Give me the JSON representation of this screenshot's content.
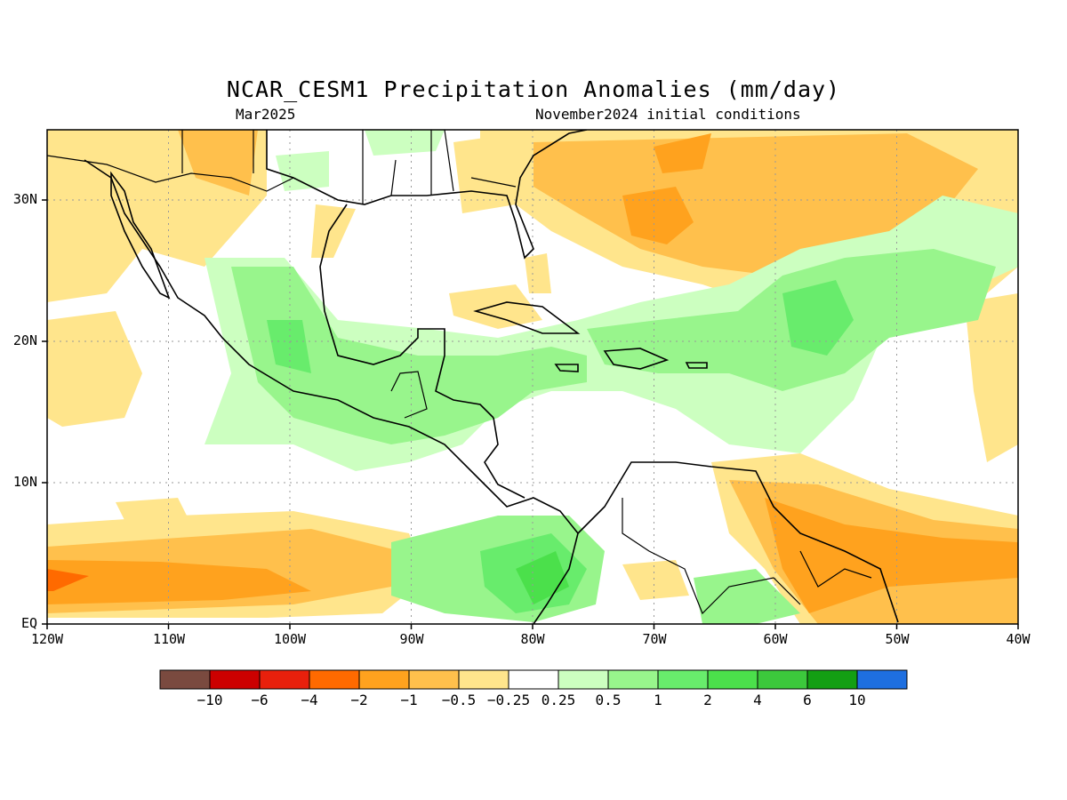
{
  "title": "NCAR_CESM1 Precipitation Anomalies (mm/day)",
  "subtitle_left": "Mar2025",
  "subtitle_right": "November2024 initial conditions",
  "map": {
    "lon_range": [
      -120,
      -40
    ],
    "lat_range": [
      0,
      35
    ],
    "x_ticks": [
      "120W",
      "110W",
      "100W",
      "90W",
      "80W",
      "70W",
      "60W",
      "50W",
      "40W"
    ],
    "y_ticks": [
      "EQ",
      "10N",
      "20N",
      "30N"
    ]
  },
  "colorbar": {
    "colors": [
      "#7a4a3f",
      "#cc0000",
      "#e8200c",
      "#ff6a00",
      "#ffa21e",
      "#ffc04c",
      "#ffe58c",
      "#ffffff",
      "#ccffc0",
      "#98f58c",
      "#68ec6c",
      "#4be04b",
      "#3cc83c",
      "#139f13",
      "#1e6fe0"
    ],
    "labels": [
      "-10",
      "-6",
      "-4",
      "-2",
      "-1",
      "-0.5",
      "-0.25",
      "0.25",
      "0.5",
      "1",
      "2",
      "4",
      "6",
      "10"
    ]
  }
}
